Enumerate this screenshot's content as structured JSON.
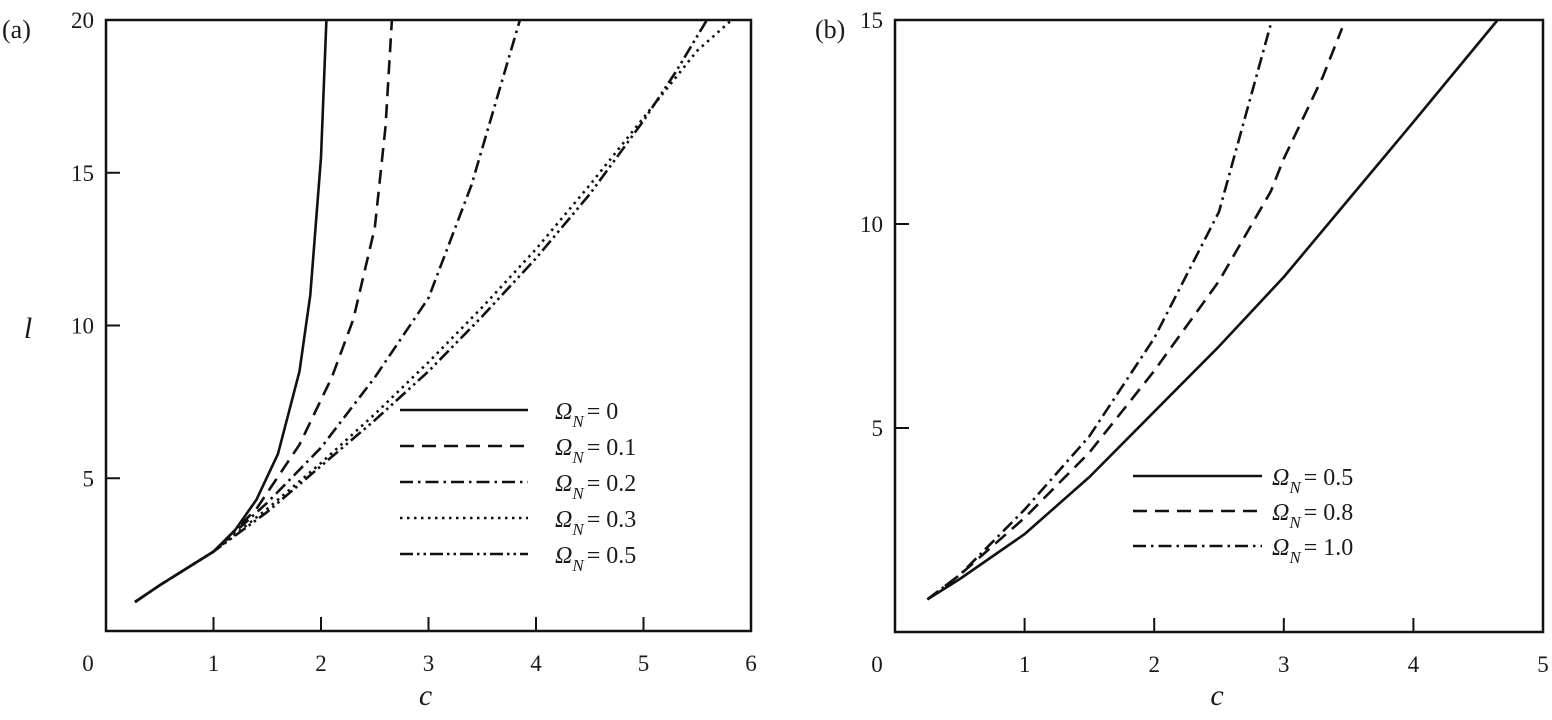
{
  "chart_data": [
    {
      "type": "line",
      "panel_label": "(a)",
      "xlabel": "c",
      "ylabel": "l",
      "xlim": [
        0,
        6
      ],
      "ylim": [
        0,
        20
      ],
      "xticks": [
        "0",
        "1",
        "2",
        "3",
        "4",
        "5",
        "6"
      ],
      "yticks": [
        "5",
        "10",
        "15",
        "20"
      ],
      "xtick_values": [
        0,
        1,
        2,
        3,
        4,
        5,
        6
      ],
      "ytick_values": [
        5,
        10,
        15,
        20
      ],
      "grid": false,
      "legend_position": "lower-right",
      "series": [
        {
          "name": "Ω_N = 0",
          "symbol": "Ω",
          "sub": "N",
          "value": "= 0",
          "style": "solid",
          "x": [
            0.27,
            0.5,
            1.0,
            1.2,
            1.4,
            1.6,
            1.8,
            1.9,
            2.0,
            2.05
          ],
          "y": [
            0.95,
            1.5,
            2.6,
            3.3,
            4.3,
            5.8,
            8.5,
            11.0,
            15.5,
            20
          ]
        },
        {
          "name": "Ω_N = 0.1",
          "symbol": "Ω",
          "sub": "N",
          "value": "= 0.1",
          "style": "dashed",
          "x": [
            0.27,
            0.5,
            1.0,
            1.4,
            1.8,
            2.1,
            2.3,
            2.5,
            2.6,
            2.66
          ],
          "y": [
            0.95,
            1.5,
            2.6,
            4.0,
            6.1,
            8.3,
            10.2,
            13.2,
            16.5,
            20
          ]
        },
        {
          "name": "Ω_N = 0.2",
          "symbol": "Ω",
          "sub": "N",
          "value": "= 0.2",
          "style": "dashdot",
          "x": [
            0.27,
            0.5,
            1.0,
            1.5,
            2.0,
            2.5,
            3.0,
            3.4,
            3.85
          ],
          "y": [
            0.95,
            1.5,
            2.6,
            4.2,
            6.0,
            8.3,
            10.9,
            14.6,
            20
          ]
        },
        {
          "name": "Ω_N = 0.3",
          "symbol": "Ω",
          "sub": "N",
          "value": "= 0.3",
          "style": "dotted",
          "x": [
            0.27,
            0.5,
            1.0,
            1.5,
            2.0,
            2.5,
            3.0,
            3.5,
            4.0,
            4.5,
            5.0,
            5.5,
            5.82
          ],
          "y": [
            0.95,
            1.5,
            2.6,
            4.0,
            5.5,
            7.1,
            8.8,
            10.6,
            12.5,
            14.6,
            16.8,
            19.0,
            20
          ]
        },
        {
          "name": "Ω_N = 0.5",
          "symbol": "Ω",
          "sub": "N",
          "value": "= 0.5",
          "style": "dashdotdot",
          "x": [
            0.27,
            0.5,
            1.0,
            1.5,
            2.0,
            2.5,
            3.0,
            3.5,
            4.0,
            4.5,
            5.0,
            5.3,
            5.59
          ],
          "y": [
            0.95,
            1.5,
            2.6,
            3.9,
            5.4,
            6.9,
            8.5,
            10.3,
            12.2,
            14.3,
            16.7,
            18.3,
            20
          ]
        }
      ]
    },
    {
      "type": "line",
      "panel_label": "(b)",
      "xlabel": "c",
      "ylabel": "",
      "xlim": [
        0,
        5
      ],
      "ylim": [
        0,
        15
      ],
      "xticks": [
        "0",
        "1",
        "2",
        "3",
        "4",
        "5"
      ],
      "yticks": [
        "5",
        "10",
        "15"
      ],
      "xtick_values": [
        0,
        1,
        2,
        3,
        4,
        5
      ],
      "ytick_values": [
        5,
        10,
        15
      ],
      "grid": false,
      "legend_position": "lower-right",
      "series": [
        {
          "name": "Ω_N = 0.5",
          "symbol": "Ω",
          "sub": "N",
          "value": "= 0.5",
          "style": "solid",
          "x": [
            0.25,
            0.5,
            1.0,
            1.5,
            2.0,
            2.5,
            3.0,
            3.5,
            4.0,
            4.65
          ],
          "y": [
            0.8,
            1.3,
            2.4,
            3.8,
            5.4,
            7.0,
            8.7,
            10.6,
            12.5,
            15
          ]
        },
        {
          "name": "Ω_N = 0.8",
          "symbol": "Ω",
          "sub": "N",
          "value": "= 0.8",
          "style": "dashed",
          "x": [
            0.25,
            0.5,
            1.0,
            1.5,
            2.0,
            2.5,
            2.9,
            3.0,
            3.3,
            3.45
          ],
          "y": [
            0.8,
            1.4,
            2.8,
            4.4,
            6.4,
            8.6,
            10.8,
            11.6,
            13.6,
            14.8
          ]
        },
        {
          "name": "Ω_N = 1.0",
          "symbol": "Ω",
          "sub": "N",
          "value": "= 1.0",
          "style": "dashdot",
          "x": [
            0.25,
            0.5,
            1.0,
            1.5,
            2.0,
            2.5,
            2.9
          ],
          "y": [
            0.8,
            1.4,
            3.0,
            4.8,
            7.2,
            10.3,
            14.9
          ]
        }
      ]
    }
  ]
}
